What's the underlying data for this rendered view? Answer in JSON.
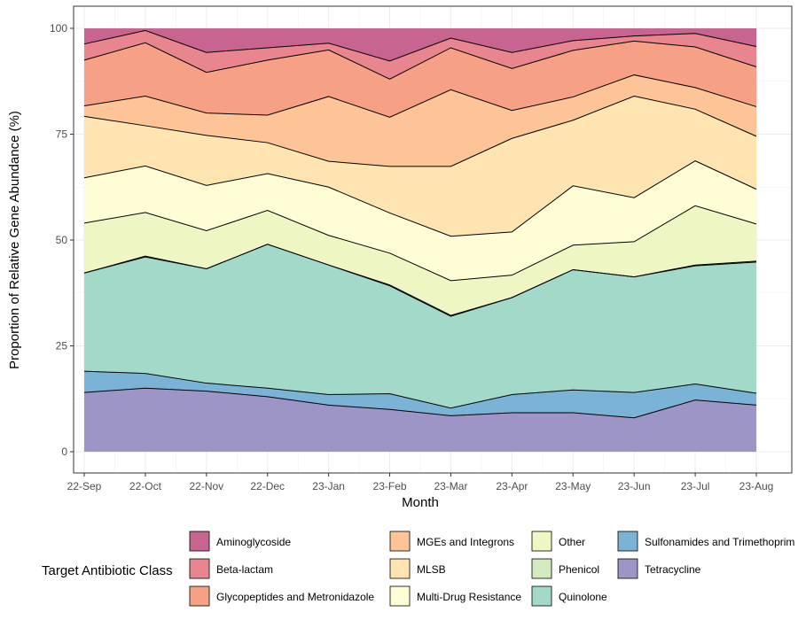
{
  "chart_data": {
    "type": "area",
    "stacked": true,
    "title": "",
    "xlabel": "Month",
    "ylabel": "Proportion of Relative Gene Abundance (%)",
    "ylim": [
      0,
      100
    ],
    "yticks": [
      0,
      25,
      50,
      75,
      100
    ],
    "grid": true,
    "legend_title": "Target Antibiotic Class",
    "legend_position": "bottom",
    "categories": [
      "22-Sep",
      "22-Oct",
      "22-Nov",
      "22-Dec",
      "23-Jan",
      "23-Feb",
      "23-Mar",
      "23-Apr",
      "23-May",
      "23-Jun",
      "23-Jul",
      "23-Aug"
    ],
    "series": [
      {
        "name": "Tetracycline",
        "color": "#9e95c7",
        "values": [
          14.0,
          15.0,
          14.3,
          13.0,
          11.0,
          10.0,
          8.5,
          9.2,
          9.2,
          8.0,
          12.2,
          11.0
        ]
      },
      {
        "name": "Sulfonamides and Trimethoprim",
        "color": "#7ab3d6",
        "values": [
          5.0,
          3.5,
          1.9,
          2.0,
          2.5,
          3.7,
          1.8,
          4.3,
          5.4,
          6.0,
          3.8,
          2.8
        ]
      },
      {
        "name": "Quinolone",
        "color": "#a2d9c9",
        "values": [
          23.2,
          27.5,
          27.0,
          34.0,
          30.6,
          25.5,
          21.7,
          22.9,
          28.4,
          27.3,
          27.9,
          31.0
        ]
      },
      {
        "name": "Phenicol",
        "color": "#d2ecc0",
        "values": [
          0.0,
          0.2,
          0.0,
          0.0,
          0.0,
          0.2,
          0.2,
          0.0,
          0.0,
          0.0,
          0.2,
          0.2
        ]
      },
      {
        "name": "Other",
        "color": "#eef7c4",
        "values": [
          11.8,
          10.3,
          9.0,
          8.0,
          7.0,
          7.5,
          8.2,
          5.3,
          5.8,
          8.3,
          14.0,
          8.8
        ]
      },
      {
        "name": "Multi-Drug Resistance",
        "color": "#fefdd6",
        "values": [
          10.7,
          11.0,
          10.7,
          8.7,
          11.4,
          9.5,
          10.5,
          10.2,
          14.0,
          10.4,
          10.6,
          8.2
        ]
      },
      {
        "name": "MLSB",
        "color": "#fee4b1",
        "values": [
          14.5,
          9.5,
          11.8,
          7.3,
          6.1,
          11.0,
          16.5,
          22.1,
          15.5,
          24.0,
          12.2,
          12.5
        ]
      },
      {
        "name": "MGEs and Integrons",
        "color": "#fdc597",
        "values": [
          2.5,
          7.0,
          5.3,
          6.5,
          15.3,
          11.6,
          18.1,
          6.6,
          5.5,
          5.0,
          5.1,
          7.0
        ]
      },
      {
        "name": "Glycopeptides and Metronidazole",
        "color": "#f6a185",
        "values": [
          10.8,
          12.6,
          9.6,
          13.0,
          11.0,
          9.0,
          9.9,
          9.9,
          11.0,
          8.0,
          9.6,
          9.4
        ]
      },
      {
        "name": "Beta-lactam",
        "color": "#e8858e",
        "values": [
          3.8,
          2.9,
          4.7,
          2.9,
          1.6,
          4.3,
          2.3,
          3.8,
          2.3,
          1.2,
          3.2,
          4.8
        ]
      },
      {
        "name": "Aminoglycoside",
        "color": "#c76490",
        "values": [
          3.7,
          0.5,
          5.7,
          4.6,
          3.5,
          7.7,
          2.3,
          5.7,
          2.9,
          1.8,
          1.2,
          4.3
        ]
      }
    ],
    "legend_order": [
      "Aminoglycoside",
      "Beta-lactam",
      "Glycopeptides and Metronidazole",
      "MGEs and Integrons",
      "MLSB",
      "Multi-Drug Resistance",
      "Other",
      "Phenicol",
      "Quinolone",
      "Sulfonamides and Trimethoprim",
      "Tetracycline"
    ]
  }
}
